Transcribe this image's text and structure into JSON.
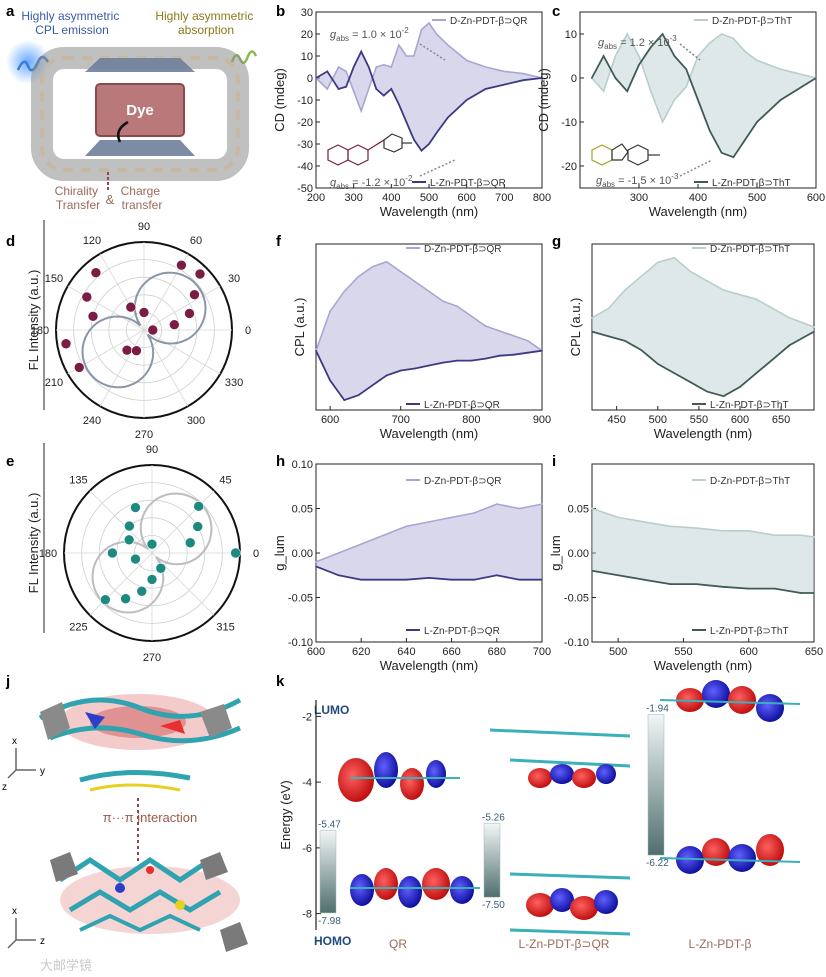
{
  "figure": {
    "panel_letters": [
      "a",
      "b",
      "c",
      "d",
      "e",
      "f",
      "g",
      "h",
      "i",
      "j",
      "k"
    ],
    "colors": {
      "qr_d": "#a9a6d4",
      "qr_l": "#3c3a84",
      "tht_d": "#b9cdcd",
      "tht_l": "#3f5a58",
      "maroon": "#7a1d44",
      "teal": "#1d8a80"
    }
  },
  "panel_a": {
    "emission": "Highly asymmetric\nCPL emission",
    "absorption": "Highly asymmetric\nabsorption",
    "dye": "Dye",
    "chirality": "Chirality\nTransfer",
    "amp": "&",
    "charge": "Charge\ntransfer"
  },
  "panel_b": {
    "chart_data": {
      "type": "line",
      "xlabel": "Wavelength (nm)",
      "ylabel": "CD (mdeg)",
      "xlim": [
        200,
        800
      ],
      "ylim": [
        -50,
        30
      ],
      "xticks": [
        200,
        300,
        400,
        500,
        600,
        700,
        800
      ],
      "yticks": [
        30,
        20,
        10,
        0,
        -10,
        -20,
        -30,
        -40,
        -50
      ],
      "series": [
        {
          "name": "D-Zn-PDT-β⊃QR",
          "x": [
            200,
            230,
            260,
            280,
            300,
            320,
            340,
            360,
            380,
            400,
            420,
            440,
            460,
            480,
            500,
            520,
            550,
            600,
            650,
            700,
            750,
            800
          ],
          "y": [
            0,
            -5,
            5,
            3,
            -6,
            -15,
            -5,
            5,
            6,
            5,
            15,
            10,
            10,
            22,
            25,
            20,
            15,
            8,
            5,
            3,
            2,
            0
          ]
        },
        {
          "name": "L-Zn-PDT-β⊃QR",
          "x": [
            200,
            230,
            260,
            280,
            300,
            320,
            340,
            360,
            380,
            400,
            420,
            440,
            460,
            480,
            500,
            520,
            550,
            600,
            650,
            700,
            750,
            800
          ],
          "y": [
            0,
            3,
            -5,
            -4,
            5,
            12,
            5,
            -5,
            -8,
            -5,
            -12,
            -20,
            -28,
            -33,
            -30,
            -25,
            -18,
            -10,
            -5,
            -3,
            -1,
            0
          ]
        }
      ],
      "annotations": [
        "g_abs = 1.0 × 10^-2",
        "g_abs = -1.2 × 10^-2"
      ]
    },
    "g_top_sym": "g",
    "g_top_sub": "abs",
    "g_top_val": " = 1.0 × 10",
    "g_top_exp": "-2",
    "g_bot_sym": "g",
    "g_bot_sub": "abs",
    "g_bot_val": " = -1.2 × 10",
    "g_bot_exp": "-2"
  },
  "panel_c": {
    "chart_data": {
      "type": "line",
      "xlabel": "Wavelength (nm)",
      "ylabel": "CD (mdeg)",
      "xlim": [
        200,
        600
      ],
      "ylim": [
        -25,
        15
      ],
      "xticks": [
        300,
        400,
        500,
        600
      ],
      "yticks": [
        10,
        0,
        -10,
        -20
      ],
      "series": [
        {
          "name": "D-Zn-PDT-β⊃ThT",
          "x": [
            220,
            240,
            260,
            280,
            300,
            320,
            340,
            360,
            380,
            400,
            420,
            440,
            460,
            480,
            500,
            540,
            600
          ],
          "y": [
            0,
            -3,
            5,
            10,
            5,
            -3,
            -10,
            -5,
            -2,
            5,
            8,
            10,
            9,
            6,
            4,
            2,
            0
          ]
        },
        {
          "name": "L-Zn-PDT-β⊃ThT",
          "x": [
            220,
            240,
            260,
            280,
            300,
            320,
            340,
            360,
            380,
            400,
            420,
            440,
            460,
            480,
            500,
            540,
            600
          ],
          "y": [
            0,
            5,
            0,
            -3,
            3,
            7,
            10,
            5,
            2,
            -5,
            -12,
            -17,
            -18,
            -14,
            -10,
            -5,
            0
          ]
        }
      ],
      "annotations": [
        "g_abs = 1.2 × 10^-3",
        "g_abs = -1.5 × 10^-3"
      ]
    },
    "g_top_sym": "g",
    "g_top_sub": "abs",
    "g_top_val": " = 1.2 × 10",
    "g_top_exp": "-3",
    "g_bot_sym": "g",
    "g_bot_sub": "abs",
    "g_bot_val": " = -1.5 × 10",
    "g_bot_exp": "-3"
  },
  "panel_d": {
    "chart_data": {
      "type": "scatter",
      "ylabel": "FL Intensity (a.u.)",
      "angle_ticks": [
        "90",
        "60",
        "30",
        "0",
        "330",
        "300",
        "270",
        "240",
        "210",
        "180",
        "150",
        "120"
      ],
      "points_polar": [
        [
          60,
          0.85
        ],
        [
          45,
          0.9
        ],
        [
          35,
          0.7
        ],
        [
          20,
          0.55
        ],
        [
          10,
          0.35
        ],
        [
          0,
          0.1
        ],
        [
          130,
          0.85
        ],
        [
          150,
          0.75
        ],
        [
          165,
          0.6
        ],
        [
          190,
          0.9
        ],
        [
          210,
          0.85
        ],
        [
          230,
          0.3
        ],
        [
          250,
          0.25
        ],
        [
          120,
          0.3
        ],
        [
          90,
          0.2
        ]
      ]
    }
  },
  "panel_e": {
    "chart_data": {
      "type": "scatter",
      "ylabel": "FL Intensity (a.u.)",
      "angle_ticks": [
        "90",
        "45",
        "0",
        "315",
        "270",
        "225",
        "180",
        "135"
      ],
      "points_polar": [
        [
          45,
          0.75
        ],
        [
          30,
          0.6
        ],
        [
          15,
          0.45
        ],
        [
          0,
          0.95
        ],
        [
          200,
          0.2
        ],
        [
          225,
          0.75
        ],
        [
          240,
          0.6
        ],
        [
          255,
          0.45
        ],
        [
          110,
          0.55
        ],
        [
          130,
          0.4
        ],
        [
          150,
          0.3
        ],
        [
          270,
          0.3
        ],
        [
          300,
          0.2
        ],
        [
          90,
          0.1
        ],
        [
          180,
          0.45
        ]
      ]
    }
  },
  "panel_f": {
    "chart_data": {
      "type": "line",
      "xlabel": "Wavelength (nm)",
      "ylabel": "CPL (a.u.)",
      "xlim": [
        580,
        900
      ],
      "xticks": [
        600,
        700,
        800,
        900
      ],
      "series": [
        {
          "name": "D-Zn-PDT-β⊃QR",
          "x": [
            580,
            600,
            620,
            640,
            660,
            680,
            700,
            720,
            740,
            760,
            780,
            800,
            820,
            840,
            860,
            880,
            900
          ],
          "y": [
            0.0,
            0.4,
            0.6,
            0.75,
            0.85,
            0.9,
            0.8,
            0.7,
            0.6,
            0.5,
            0.45,
            0.35,
            0.25,
            0.2,
            0.15,
            0.1,
            0.0
          ]
        },
        {
          "name": "L-Zn-PDT-β⊃QR",
          "x": [
            580,
            600,
            620,
            640,
            660,
            680,
            700,
            720,
            740,
            760,
            780,
            800,
            820,
            840,
            860,
            880,
            900
          ],
          "y": [
            0.0,
            -0.3,
            -0.5,
            -0.45,
            -0.35,
            -0.25,
            -0.2,
            -0.18,
            -0.15,
            -0.12,
            -0.1,
            -0.1,
            -0.08,
            -0.05,
            -0.04,
            -0.02,
            0.0
          ]
        }
      ]
    }
  },
  "panel_g": {
    "chart_data": {
      "type": "line",
      "xlabel": "Wavelength (nm)",
      "ylabel": "CPL (a.u.)",
      "xlim": [
        420,
        690
      ],
      "xticks": [
        450,
        500,
        550,
        600,
        650
      ],
      "series": [
        {
          "name": "D-Zn-PDT-β⊃ThT",
          "x": [
            420,
            440,
            460,
            480,
            500,
            520,
            540,
            560,
            580,
            600,
            620,
            640,
            660,
            690
          ],
          "y": [
            0.1,
            0.2,
            0.4,
            0.55,
            0.7,
            0.75,
            0.6,
            0.5,
            0.4,
            0.35,
            0.3,
            0.2,
            0.1,
            0.0
          ]
        },
        {
          "name": "L-Zn-PDT-β⊃ThT",
          "x": [
            420,
            440,
            460,
            480,
            500,
            520,
            540,
            560,
            580,
            600,
            620,
            640,
            660,
            690
          ],
          "y": [
            -0.05,
            -0.1,
            -0.15,
            -0.25,
            -0.4,
            -0.5,
            -0.6,
            -0.7,
            -0.75,
            -0.65,
            -0.5,
            -0.35,
            -0.2,
            -0.05
          ]
        }
      ]
    }
  },
  "panel_h": {
    "chart_data": {
      "type": "line",
      "xlabel": "Wavelength (nm)",
      "ylabel": "g_lum",
      "xlim": [
        600,
        700
      ],
      "ylim": [
        -0.1,
        0.1
      ],
      "xticks": [
        600,
        620,
        640,
        660,
        680,
        700
      ],
      "yticks": [
        0.1,
        0.05,
        0.0,
        -0.05,
        -0.1
      ],
      "series": [
        {
          "name": "D-Zn-PDT-β⊃QR",
          "x": [
            600,
            610,
            620,
            630,
            640,
            650,
            660,
            670,
            680,
            690,
            700
          ],
          "y": [
            -0.01,
            0.0,
            0.01,
            0.02,
            0.03,
            0.035,
            0.04,
            0.045,
            0.055,
            0.05,
            0.055
          ]
        },
        {
          "name": "L-Zn-PDT-β⊃QR",
          "x": [
            600,
            610,
            620,
            630,
            640,
            650,
            660,
            670,
            680,
            690,
            700
          ],
          "y": [
            -0.015,
            -0.025,
            -0.03,
            -0.03,
            -0.03,
            -0.028,
            -0.03,
            -0.03,
            -0.025,
            -0.03,
            -0.03
          ]
        }
      ]
    }
  },
  "panel_i": {
    "chart_data": {
      "type": "line",
      "xlabel": "Wavelength (nm)",
      "ylabel": "g_lum",
      "xlim": [
        480,
        650
      ],
      "ylim": [
        -0.1,
        0.1
      ],
      "xticks": [
        500,
        550,
        600,
        650
      ],
      "yticks": [
        0.05,
        0.0,
        -0.05,
        -0.1
      ],
      "series": [
        {
          "name": "D-Zn-PDT-β⊃ThT",
          "x": [
            480,
            500,
            520,
            540,
            560,
            580,
            600,
            620,
            640,
            650
          ],
          "y": [
            0.05,
            0.04,
            0.035,
            0.03,
            0.028,
            0.025,
            0.025,
            0.02,
            0.02,
            0.018
          ]
        },
        {
          "name": "L-Zn-PDT-β⊃ThT",
          "x": [
            480,
            500,
            520,
            540,
            560,
            580,
            600,
            620,
            640,
            650
          ],
          "y": [
            -0.02,
            -0.025,
            -0.03,
            -0.035,
            -0.035,
            -0.038,
            -0.04,
            -0.04,
            -0.045,
            -0.045
          ]
        }
      ]
    }
  },
  "panel_j": {
    "x_axis": "x",
    "y_axis": "y",
    "z_axis": "z",
    "x_axis2": "x",
    "z_axis2": "z",
    "interaction": "π···π interaction"
  },
  "panel_k": {
    "chart_data": {
      "type": "table",
      "ylabel": "Energy (eV)",
      "ylim": [
        -8.5,
        -1.5
      ],
      "yticks": [
        -2,
        -4,
        -6,
        -8
      ],
      "columns": [
        "QR",
        "L-Zn-PDT-β⊃QR",
        "L-Zn-PDT-β"
      ],
      "lumo": [
        -5.47,
        -5.26,
        -1.94
      ],
      "homo": [
        -7.98,
        -7.5,
        -6.22
      ]
    },
    "lumo_label": "LUMO",
    "homo_label": "HOMO",
    "lumo_vals": [
      "-5.47",
      "-5.26",
      "-1.94"
    ],
    "homo_vals": [
      "-7.98",
      "-7.50",
      "-6.22"
    ]
  },
  "watermark": "大邮学镜"
}
